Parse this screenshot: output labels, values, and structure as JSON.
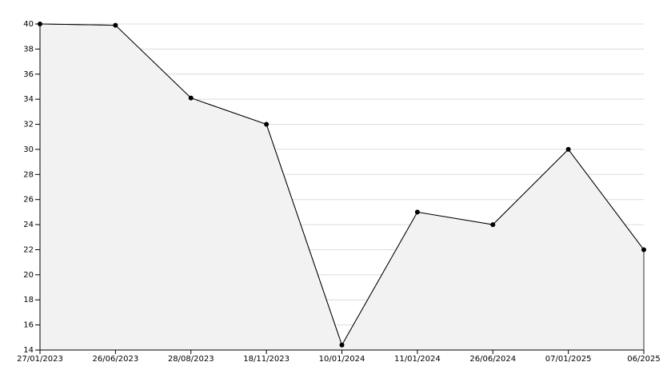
{
  "chart_data": {
    "type": "area",
    "categories": [
      "27/01/2023",
      "26/06/2023",
      "28/08/2023",
      "18/11/2023",
      "10/01/2024",
      "11/01/2024",
      "26/06/2024",
      "07/01/2025",
      "06/2025"
    ],
    "values": [
      40,
      39.9,
      34.1,
      32,
      14.4,
      25,
      24,
      30,
      22
    ],
    "color": "#000000",
    "fill": "#f2f2f2",
    "ylim": [
      14,
      40
    ],
    "yticks": [
      14,
      16,
      18,
      20,
      22,
      24,
      26,
      28,
      30,
      32,
      34,
      36,
      38,
      40
    ],
    "grid": true
  }
}
